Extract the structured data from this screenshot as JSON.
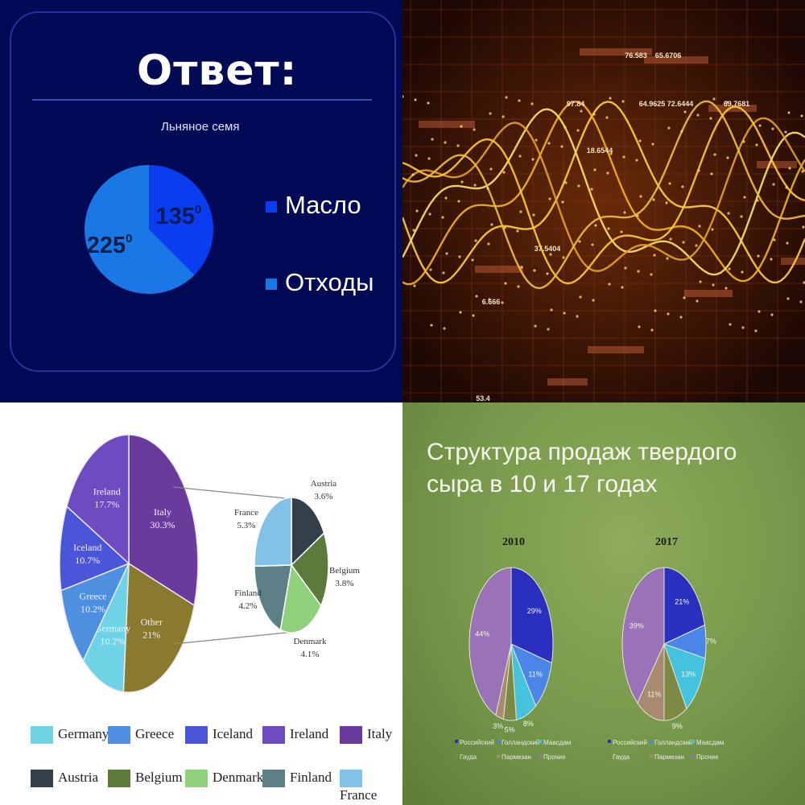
{
  "panel_tl": {
    "title": "Ответ:",
    "subtitle": "Льняное семя",
    "legend": [
      {
        "label": "Масло",
        "color": "#0a3cf0"
      },
      {
        "label": "Отходы",
        "color": "#1a78e6"
      }
    ],
    "slices": [
      {
        "label": "135",
        "exp": "0",
        "value": 135,
        "color": "#0a3cf0"
      },
      {
        "label": "225",
        "exp": "0",
        "value": 225,
        "color": "#1a78e6"
      }
    ]
  },
  "panel_tr": {
    "readouts": [
      "76.583",
      "65.6706",
      "97.84",
      "64.9625",
      "72.6444",
      "69.7681",
      "18.6544",
      "6.666",
      "37.5404",
      "53.4"
    ]
  },
  "panel_bl": {
    "main": [
      {
        "label": "Italy",
        "pct": "30.3%",
        "value": 30.3,
        "color": "#6a3a9c"
      },
      {
        "label": "Other",
        "pct": "21%",
        "value": 21,
        "color": "#8a7a2e"
      },
      {
        "label": "Germany",
        "pct": "10.2%",
        "value": 10.2,
        "color": "#6fd3e6"
      },
      {
        "label": "Greece",
        "pct": "10.2%",
        "value": 10.2,
        "color": "#4f8fe0"
      },
      {
        "label": "Iceland",
        "pct": "10.7%",
        "value": 10.7,
        "color": "#4a55d8"
      },
      {
        "label": "Ireland",
        "pct": "17.7%",
        "value": 17.7,
        "color": "#6e4bc0"
      }
    ],
    "sub": [
      {
        "label": "Austria",
        "pct": "3.6%",
        "value": 3.6,
        "color": "#334049"
      },
      {
        "label": "Belgium",
        "pct": "3.8%",
        "value": 3.8,
        "color": "#5c7a3a"
      },
      {
        "label": "Denmark",
        "pct": "4.1%",
        "value": 4.1,
        "color": "#8fd07a"
      },
      {
        "label": "Finland",
        "pct": "4.2%",
        "value": 4.2,
        "color": "#5f7f86"
      },
      {
        "label": "France",
        "pct": "5.3%",
        "value": 5.3,
        "color": "#82c1e8"
      }
    ],
    "legend": [
      {
        "label": "Germany",
        "color": "#6fd3e6"
      },
      {
        "label": "Greece",
        "color": "#4f8fe0"
      },
      {
        "label": "Iceland",
        "color": "#4a55d8"
      },
      {
        "label": "Ireland",
        "color": "#6e4bc0"
      },
      {
        "label": "Italy",
        "color": "#6a3a9c"
      },
      {
        "label": "Austria",
        "color": "#334049"
      },
      {
        "label": "Belgium",
        "color": "#5c7a3a"
      },
      {
        "label": "Denmark",
        "color": "#8fd07a"
      },
      {
        "label": "Finland",
        "color": "#5f7f86"
      },
      {
        "label": "France",
        "color": "#82c1e8"
      }
    ]
  },
  "panel_br": {
    "title": "Структура продаж твердого сыра в 10 и 17 годах",
    "categories": [
      "Российский",
      "Голландский",
      "Маасдам",
      "Гауда",
      "Пармезан",
      "Прочие"
    ],
    "colors": [
      "#2a2fc0",
      "#4a86e8",
      "#45c3de",
      "#7c8a44",
      "#a88a70",
      "#9a72b8"
    ],
    "pies": [
      {
        "year": "2010",
        "values": [
          29,
          11,
          8,
          5,
          3,
          44
        ],
        "labels": [
          "29%",
          "11%",
          "8%",
          "5%",
          "3%",
          "44%"
        ]
      },
      {
        "year": "2017",
        "values": [
          21,
          7,
          13,
          9,
          11,
          39
        ],
        "labels": [
          "21%",
          "7%",
          "13%",
          "9%",
          "11%",
          "39%"
        ]
      }
    ]
  },
  "chart_data": [
    {
      "type": "pie",
      "title": "Льняное семя",
      "categories": [
        "Масло",
        "Отходы"
      ],
      "values": [
        135,
        225
      ],
      "units": "degrees"
    },
    {
      "type": "line",
      "title": "",
      "series_count": 6,
      "grid": true
    },
    {
      "type": "pie",
      "title": "",
      "categories": [
        "Italy",
        "Other",
        "Germany",
        "Greece",
        "Iceland",
        "Ireland"
      ],
      "values": [
        30.3,
        21,
        10.2,
        10.2,
        10.7,
        17.7
      ],
      "breakdown_of": "Other",
      "breakdown": {
        "categories": [
          "Austria",
          "Belgium",
          "Denmark",
          "Finland",
          "France"
        ],
        "values": [
          3.6,
          3.8,
          4.1,
          4.2,
          5.3
        ]
      }
    },
    {
      "type": "pie",
      "title": "Структура продаж твердого сыра в 10 и 17 годах",
      "categories": [
        "Российский",
        "Голландский",
        "Маасдам",
        "Гауда",
        "Пармезан",
        "Прочие"
      ],
      "series": [
        {
          "name": "2010",
          "values": [
            29,
            11,
            8,
            5,
            3,
            44
          ]
        },
        {
          "name": "2017",
          "values": [
            21,
            7,
            13,
            9,
            11,
            39
          ]
        }
      ]
    }
  ]
}
